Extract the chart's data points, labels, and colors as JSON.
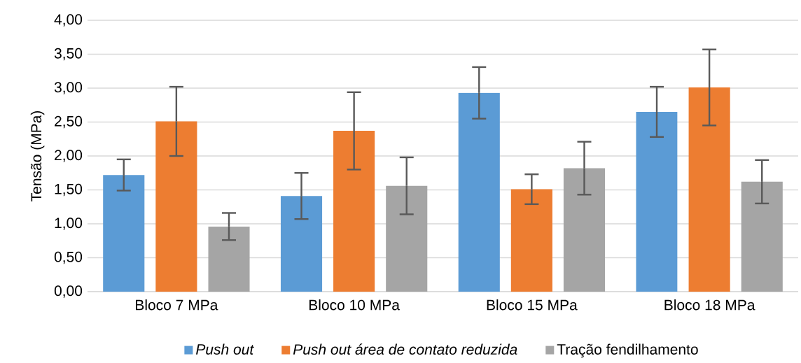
{
  "chart_data": {
    "type": "bar",
    "ylabel": "Tensão (MPa)",
    "categories": [
      "Bloco 7 MPa",
      "Bloco 10 MPa",
      "Bloco 15 MPa",
      "Bloco 18 MPa"
    ],
    "series": [
      {
        "name": "Push out",
        "color": "#5b9bd5",
        "values": [
          1.72,
          1.41,
          2.93,
          2.65
        ],
        "errors": [
          0.23,
          0.34,
          0.38,
          0.37
        ]
      },
      {
        "name": "Push out área de contato reduzida",
        "color": "#ed7d31",
        "values": [
          2.51,
          2.37,
          1.51,
          3.01
        ],
        "errors": [
          0.51,
          0.57,
          0.22,
          0.56
        ]
      },
      {
        "name": "Tração fendilhamento",
        "color": "#a5a5a5",
        "values": [
          0.96,
          1.56,
          1.82,
          1.62
        ],
        "errors": [
          0.2,
          0.42,
          0.39,
          0.32
        ]
      }
    ],
    "ylim": [
      0,
      4
    ],
    "yticks": [
      {
        "value": 0,
        "label": "0,00"
      },
      {
        "value": 0.5,
        "label": "0,50"
      },
      {
        "value": 1,
        "label": "1,00"
      },
      {
        "value": 1.5,
        "label": "1,50"
      },
      {
        "value": 2,
        "label": "2,00"
      },
      {
        "value": 2.5,
        "label": "2,50"
      },
      {
        "value": 3,
        "label": "3,00"
      },
      {
        "value": 3.5,
        "label": "3,50"
      },
      {
        "value": 4,
        "label": "4,00"
      }
    ],
    "grid": "y",
    "legend": "bottom"
  }
}
